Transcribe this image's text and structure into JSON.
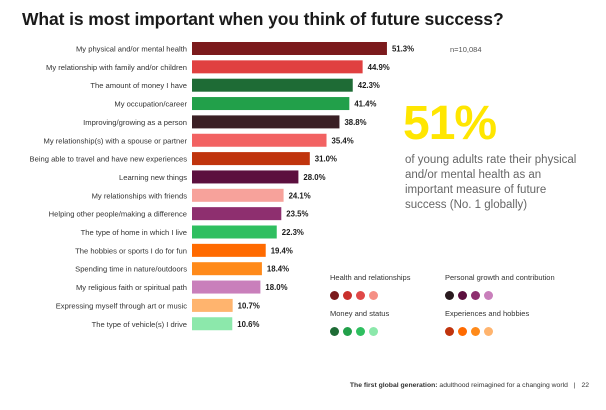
{
  "chart_data": {
    "type": "bar",
    "orientation": "horizontal",
    "title": "What is most important when you think of future success?",
    "categories": [
      "My physical and/or mental health",
      "My relationship with family and/or children",
      "The amount of money I have",
      "My occupation/career",
      "Improving/growing as a person",
      "My relationship(s) with a spouse or partner",
      "Being able to travel and have new experiences",
      "Learning new things",
      "My relationships with friends",
      "Helping other people/making a difference",
      "The type of home in which I live",
      "The hobbies or sports I do for fun",
      "Spending time in nature/outdoors",
      "My religious faith or spiritual path",
      "Expressing myself through art or music",
      "The type of vehicle(s) I drive"
    ],
    "values": [
      51.3,
      44.9,
      42.3,
      41.4,
      38.8,
      35.4,
      31.0,
      28.0,
      24.1,
      23.5,
      22.3,
      19.4,
      18.4,
      18.0,
      10.7,
      10.6
    ],
    "value_labels": [
      "51.3%",
      "44.9%",
      "42.3%",
      "41.4%",
      "38.8%",
      "35.4%",
      "31.0%",
      "28.0%",
      "24.1%",
      "23.5%",
      "22.3%",
      "19.4%",
      "18.4%",
      "18.0%",
      "10.7%",
      "10.6%"
    ],
    "colors": [
      "#7b1a1c",
      "#e04040",
      "#1e6b35",
      "#22a04a",
      "#3a1f24",
      "#f26262",
      "#c0340d",
      "#5c0f3e",
      "#f7a29b",
      "#8e2f6f",
      "#2fbf60",
      "#ff6a00",
      "#ff8a1a",
      "#c97fbb",
      "#ffb46e",
      "#8ce8ab"
    ],
    "xlim": [
      0,
      60
    ]
  },
  "header": {
    "title": "What is most important when you think of future success?"
  },
  "note": "n=10,084",
  "stat": {
    "big": "51%",
    "text": "of young adults rate their physical and/or mental health as an important measure of future success (No. 1 globally)"
  },
  "legend": [
    {
      "label": "Health and relationships",
      "colors": [
        "#7b1a1c",
        "#c9302c",
        "#e04848",
        "#f58f85"
      ]
    },
    {
      "label": "Personal growth and contribution",
      "colors": [
        "#2a1a1f",
        "#5c0f3e",
        "#8e2f6f",
        "#c97fbb"
      ]
    },
    {
      "label": "Money and status",
      "colors": [
        "#1e6b35",
        "#22a04a",
        "#2fbf60",
        "#8ce8ab"
      ]
    },
    {
      "label": "Experiences and hobbies",
      "colors": [
        "#c0340d",
        "#ff6a00",
        "#ff8a1a",
        "#ffb46e"
      ]
    }
  ],
  "footer": {
    "bold": "The first global generation:",
    "text": " adulthood reimagined for a changing world",
    "separator": "|",
    "page": "22"
  }
}
